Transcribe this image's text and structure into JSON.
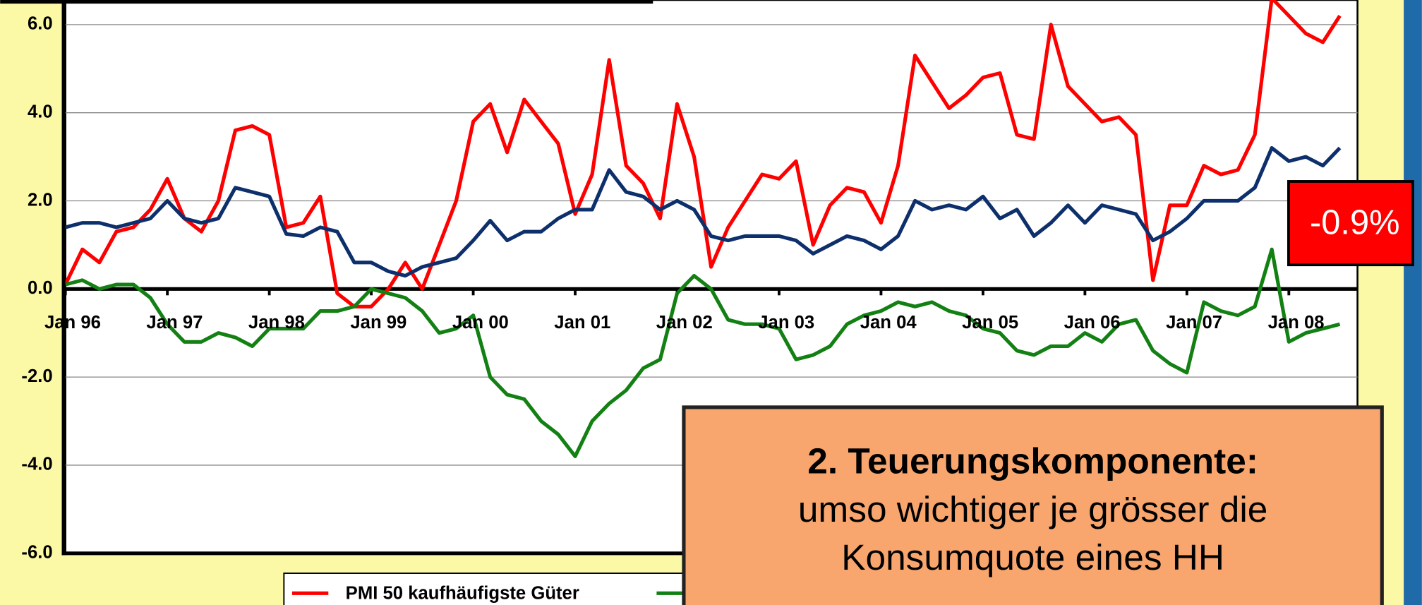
{
  "chart_data": {
    "type": "line",
    "categories": [
      "Jan 96",
      null,
      null,
      null,
      null,
      null,
      "Jan 97",
      null,
      null,
      null,
      null,
      null,
      "Jan 98",
      null,
      null,
      null,
      null,
      null,
      "Jan 99",
      null,
      null,
      null,
      null,
      null,
      "Jan 00",
      null,
      null,
      null,
      null,
      null,
      "Jan 01",
      null,
      null,
      null,
      null,
      null,
      "Jan 02",
      null,
      null,
      null,
      null,
      null,
      "Jan 03",
      null,
      null,
      null,
      null,
      null,
      "Jan 04",
      null,
      null,
      null,
      null,
      null,
      "Jan 05",
      null,
      null,
      null,
      null,
      null,
      "Jan 06",
      null,
      null,
      null,
      null,
      null,
      "Jan 07",
      null,
      null,
      null,
      null,
      null,
      "Jan 08",
      null,
      null,
      null
    ],
    "series": [
      {
        "name": "PMI 50 kaufhäufigste Güter",
        "color": "#ff0000",
        "values": [
          0.1,
          0.9,
          0.6,
          1.3,
          1.4,
          1.8,
          2.5,
          1.6,
          1.3,
          2.0,
          3.6,
          3.7,
          3.5,
          1.4,
          1.5,
          2.1,
          -0.1,
          -0.4,
          -0.4,
          0.0,
          0.6,
          0.0,
          1.0,
          2.0,
          3.8,
          4.2,
          3.1,
          4.3,
          3.8,
          3.3,
          1.7,
          2.6,
          5.2,
          2.8,
          2.4,
          1.6,
          4.2,
          3.0,
          0.5,
          1.4,
          2.0,
          2.6,
          2.5,
          2.9,
          1.0,
          1.9,
          2.3,
          2.2,
          1.5,
          2.8,
          5.3,
          4.7,
          4.1,
          4.4,
          4.8,
          4.9,
          3.5,
          3.4,
          6.0,
          4.6,
          4.2,
          3.8,
          3.9,
          3.5,
          0.2,
          1.9,
          1.9,
          2.8,
          2.6,
          2.7,
          3.5,
          6.6,
          6.2,
          5.8,
          5.6,
          6.2
        ]
      },
      {
        "color": "#0d2f6b",
        "values": [
          1.4,
          1.5,
          1.5,
          1.4,
          1.5,
          1.6,
          2.0,
          1.6,
          1.5,
          1.6,
          2.3,
          2.2,
          2.1,
          1.25,
          1.2,
          1.4,
          1.3,
          0.6,
          0.6,
          0.4,
          0.3,
          0.5,
          0.6,
          0.7,
          1.1,
          1.55,
          1.1,
          1.3,
          1.3,
          1.6,
          1.8,
          1.8,
          2.7,
          2.2,
          2.1,
          1.8,
          2.0,
          1.8,
          1.2,
          1.1,
          1.2,
          1.2,
          1.2,
          1.1,
          0.8,
          1.0,
          1.2,
          1.1,
          0.9,
          1.2,
          2.0,
          1.8,
          1.9,
          1.8,
          2.1,
          1.6,
          1.8,
          1.2,
          1.5,
          1.9,
          1.5,
          1.9,
          1.8,
          1.7,
          1.1,
          1.3,
          1.6,
          2.0,
          2.0,
          2.0,
          2.3,
          3.2,
          2.9,
          3.0,
          2.8,
          3.2
        ]
      },
      {
        "color": "#138013",
        "values": [
          0.1,
          0.2,
          0.0,
          0.1,
          0.1,
          -0.2,
          -0.8,
          -1.2,
          -1.2,
          -1.0,
          -1.1,
          -1.3,
          -0.9,
          -0.9,
          -0.9,
          -0.5,
          -0.5,
          -0.4,
          0.0,
          -0.1,
          -0.2,
          -0.5,
          -1.0,
          -0.9,
          -0.6,
          -2.0,
          -2.4,
          -2.5,
          -3.0,
          -3.3,
          -3.8,
          -3.0,
          -2.6,
          -2.3,
          -1.8,
          -1.6,
          -0.1,
          0.3,
          0.0,
          -0.7,
          -0.8,
          -0.8,
          -0.9,
          -1.6,
          -1.5,
          -1.3,
          -0.8,
          -0.6,
          -0.5,
          -0.3,
          -0.4,
          -0.3,
          -0.5,
          -0.6,
          -0.9,
          -1.0,
          -1.4,
          -1.5,
          -1.3,
          -1.3,
          -1.0,
          -1.2,
          -0.8,
          -0.7,
          -1.4,
          -1.7,
          -1.9,
          -0.3,
          -0.5,
          -0.6,
          -0.4,
          0.9,
          -1.2,
          -1.0,
          -0.9,
          -0.8
        ]
      }
    ],
    "ylim": [
      -6,
      6.6
    ],
    "yticks": [
      {
        "value": -6,
        "label": "-6.0"
      },
      {
        "value": -4,
        "label": "-4.0"
      },
      {
        "value": -2,
        "label": "-2.0"
      },
      {
        "value": 0,
        "label": "0.0"
      },
      {
        "value": 2,
        "label": "2.0"
      },
      {
        "value": 4,
        "label": "4.0"
      },
      {
        "value": 6,
        "label": "6.0"
      }
    ],
    "grid": true,
    "badge": "-0.9%",
    "note_title": "2. Teuerungskomponente:",
    "note_text": "umso wichtiger je grösser die Konsumquote eines HH"
  }
}
